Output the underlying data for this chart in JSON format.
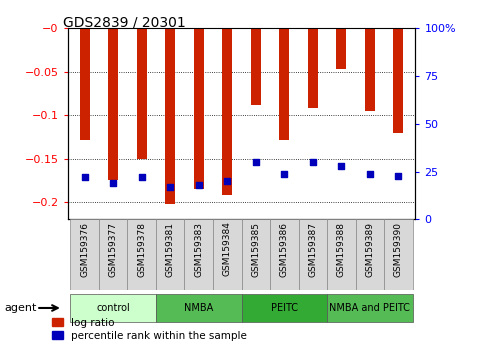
{
  "title": "GDS2839 / 20301",
  "samples": [
    "GSM159376",
    "GSM159377",
    "GSM159378",
    "GSM159381",
    "GSM159383",
    "GSM159384",
    "GSM159385",
    "GSM159386",
    "GSM159387",
    "GSM159388",
    "GSM159389",
    "GSM159390"
  ],
  "log_ratios": [
    -0.128,
    -0.175,
    -0.15,
    -0.202,
    -0.185,
    -0.192,
    -0.088,
    -0.128,
    -0.092,
    -0.047,
    -0.095,
    -0.12
  ],
  "percentile_ranks": [
    22,
    19,
    22,
    17,
    18,
    20,
    30,
    24,
    30,
    28,
    24,
    23
  ],
  "group_labels": [
    "control",
    "NMBA",
    "PEITC",
    "NMBA and PEITC"
  ],
  "group_starts": [
    0,
    3,
    6,
    9
  ],
  "group_ends": [
    3,
    6,
    9,
    12
  ],
  "group_colors": [
    "#ccffcc",
    "#55bb55",
    "#33aa33",
    "#55bb55"
  ],
  "ylim_left": [
    -0.22,
    0.0
  ],
  "ylim_right": [
    0,
    100
  ],
  "yticks_left": [
    0.0,
    -0.05,
    -0.1,
    -0.15,
    -0.2
  ],
  "yticks_right": [
    0,
    25,
    50,
    75,
    100
  ],
  "bar_color": "#cc2200",
  "dot_color": "#0000bb",
  "bar_width": 0.35,
  "legend_items": [
    "log ratio",
    "percentile rank within the sample"
  ],
  "legend_colors": [
    "#cc2200",
    "#0000bb"
  ],
  "agent_label": "agent"
}
